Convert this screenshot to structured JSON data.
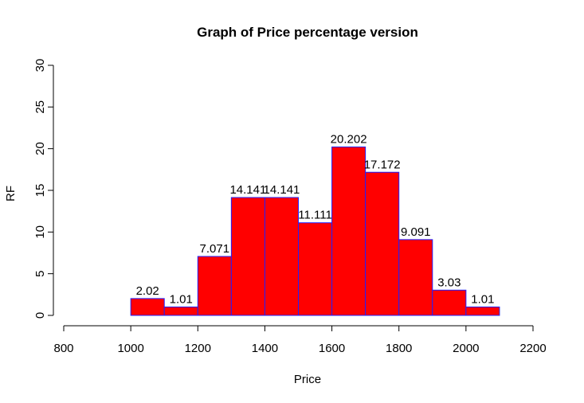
{
  "chart_data": {
    "type": "bar",
    "title": "Graph of Price percentage version",
    "xlabel": "Price",
    "ylabel": "RF",
    "bins": [
      {
        "from": 1000,
        "to": 1100,
        "value": 2.02,
        "label": "2.02"
      },
      {
        "from": 1100,
        "to": 1200,
        "value": 1.01,
        "label": "1.01"
      },
      {
        "from": 1200,
        "to": 1300,
        "value": 7.071,
        "label": "7.071"
      },
      {
        "from": 1300,
        "to": 1400,
        "value": 14.141,
        "label": "14.141"
      },
      {
        "from": 1400,
        "to": 1500,
        "value": 14.141,
        "label": "14.141"
      },
      {
        "from": 1500,
        "to": 1600,
        "value": 11.111,
        "label": "11.111"
      },
      {
        "from": 1600,
        "to": 1700,
        "value": 20.202,
        "label": "20.202"
      },
      {
        "from": 1700,
        "to": 1800,
        "value": 17.172,
        "label": "17.172"
      },
      {
        "from": 1800,
        "to": 1900,
        "value": 9.091,
        "label": "9.091"
      },
      {
        "from": 1900,
        "to": 2000,
        "value": 3.03,
        "label": "3.03"
      },
      {
        "from": 2000,
        "to": 2100,
        "value": 1.01,
        "label": "1.01"
      }
    ],
    "xlim": [
      800,
      2200
    ],
    "ylim": [
      0,
      30
    ],
    "xticks": [
      "800",
      "1000",
      "1200",
      "1400",
      "1600",
      "1800",
      "2000",
      "2200"
    ],
    "yticks": [
      "0",
      "5",
      "10",
      "15",
      "20",
      "25",
      "30"
    ],
    "grid": false,
    "colors": {
      "bar_fill": "#ff0000",
      "bar_border": "#2020ff"
    }
  }
}
